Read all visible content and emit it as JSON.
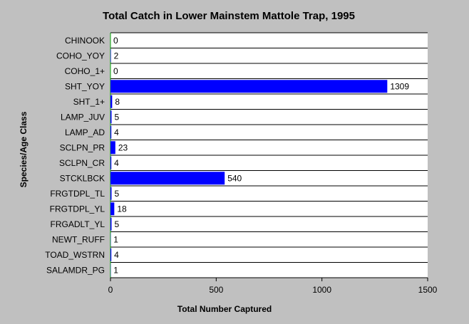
{
  "chart_data": {
    "type": "bar",
    "orientation": "horizontal",
    "title": "Total Catch in Lower Mainstem Mattole Trap, 1995",
    "xlabel": "Total Number Captured",
    "ylabel": "Species/Age Class",
    "categories": [
      "CHINOOK",
      "COHO_YOY",
      "COHO_1+",
      "SHT_YOY",
      "SHT_1+",
      "LAMP_JUV",
      "LAMP_AD",
      "SCLPN_PR",
      "SCLPN_CR",
      "STCKLBCK",
      "FRGTDPL_TL",
      "FRGTDPL_YL",
      "FRGADLT_YL",
      "NEWT_RUFF",
      "TOAD_WSTRN",
      "SALAMDR_PG"
    ],
    "values": [
      0,
      2,
      0,
      1309,
      8,
      5,
      4,
      23,
      4,
      540,
      5,
      18,
      5,
      1,
      4,
      1
    ],
    "xlim": [
      0,
      1500
    ],
    "xticks": [
      0,
      500,
      1000,
      1500
    ],
    "grid": true,
    "legend": "none",
    "colors": {
      "background": "#c0c0c0",
      "plot_background": "#ffffff",
      "bar": "#0000ff",
      "baseline": "#00a000",
      "gridline": "#000000"
    }
  }
}
